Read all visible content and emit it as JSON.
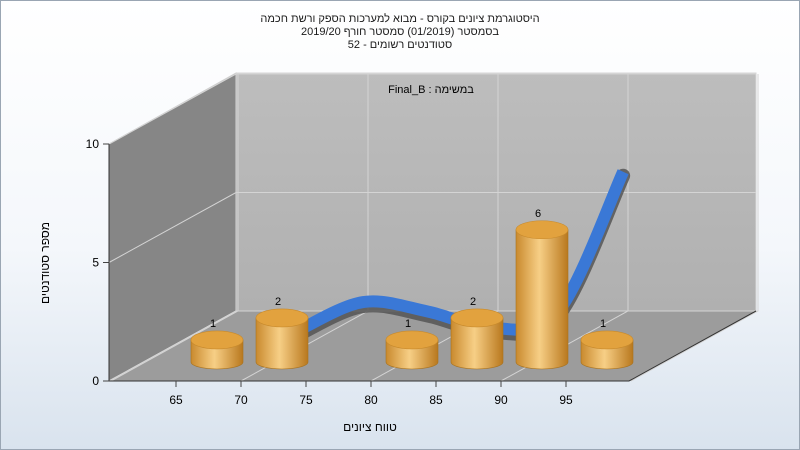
{
  "title_lines": [
    "היסטוגרמת ציונים בקורס - מבוא למערכות הספק ורשת חכמה",
    "בסמסטר (01/2019) סמסטר חורף 2019/20",
    "סטודנטים רשומים - 52"
  ],
  "chart_data": {
    "type": "bar",
    "annotation": "במשימה : Final_B",
    "xlabel": "טווח ציונים",
    "ylabel": "מספר סטודנטים",
    "x_ticks": [
      "65",
      "70",
      "75",
      "80",
      "85",
      "90",
      "95"
    ],
    "y_ticks": [
      "0",
      "5",
      "10"
    ],
    "ylim": [
      0,
      10
    ],
    "categories": [
      "65",
      "70",
      "80",
      "85",
      "90",
      "95"
    ],
    "values": [
      1,
      2,
      1,
      2,
      6,
      1
    ],
    "labels": [
      "1",
      "2",
      "1",
      "2",
      "6",
      "1"
    ],
    "curve": {
      "x": [
        70,
        75,
        80,
        85,
        90,
        95
      ],
      "y": [
        0.8,
        2.0,
        1.6,
        0.9,
        1.6,
        7.5
      ]
    },
    "grid": true,
    "bar_color": "#e6a545",
    "curve_color": "#3a78d6",
    "curve_shadow_color": "#555555"
  }
}
